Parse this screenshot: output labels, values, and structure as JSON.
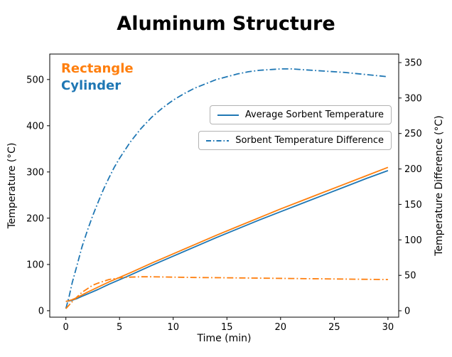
{
  "chart_data": {
    "type": "line",
    "title": "Aluminum Structure",
    "xlabel": "Time (min)",
    "ylabel_left": "Temperature (°C)",
    "ylabel_right": "Temperature Difference (°C)",
    "xlim": [
      -1.5,
      31
    ],
    "xticks": [
      0,
      5,
      10,
      15,
      20,
      25,
      30
    ],
    "ylim_left": [
      -14,
      555
    ],
    "yticks_left": [
      0,
      100,
      200,
      300,
      400,
      500
    ],
    "ylim_right": [
      -9,
      362
    ],
    "yticks_right": [
      0,
      50,
      100,
      150,
      200,
      250,
      300,
      350
    ],
    "grid": false,
    "annotations": [
      {
        "text": "Rectangle",
        "color": "#ff7f0e"
      },
      {
        "text": "Cylinder",
        "color": "#1f77b4"
      }
    ],
    "legend": [
      {
        "label": "Average Sorbent Temperature",
        "style": "solid",
        "color": "#1f77b4"
      },
      {
        "label": "Sorbent Temperature Difference",
        "style": "dashdot",
        "color": "#1f77b4"
      }
    ],
    "colors": {
      "blue": "#1f77b4",
      "orange": "#ff7f0e"
    },
    "series": [
      {
        "name": "cylinder-average-sorbent-temperature",
        "axis": "left",
        "color": "#1f77b4",
        "style": "solid",
        "x": [
          0,
          0.5,
          1,
          1.5,
          2,
          3,
          4,
          5,
          6,
          8,
          10,
          12,
          14,
          16,
          18,
          20,
          22,
          24,
          26,
          28,
          30
        ],
        "y": [
          20,
          22,
          26,
          31,
          36,
          46,
          57,
          67,
          77,
          98,
          118,
          138,
          158,
          177,
          196,
          214,
          232,
          250,
          268,
          286,
          303
        ]
      },
      {
        "name": "rectangle-average-sorbent-temperature",
        "axis": "left",
        "color": "#ff7f0e",
        "style": "solid",
        "x": [
          0,
          0.5,
          1,
          1.5,
          2,
          3,
          4,
          5,
          6,
          8,
          10,
          12,
          14,
          16,
          18,
          20,
          22,
          24,
          26,
          28,
          30
        ],
        "y": [
          20,
          23,
          28,
          34,
          40,
          51,
          62,
          72,
          82,
          103,
          123,
          143,
          163,
          182,
          201,
          220,
          238,
          256,
          274,
          292,
          310
        ]
      },
      {
        "name": "cylinder-sorbent-temperature-difference",
        "axis": "right",
        "color": "#1f77b4",
        "style": "dashdot",
        "x": [
          0,
          0.3,
          0.6,
          1,
          1.5,
          2,
          2.5,
          3,
          3.5,
          4,
          4.5,
          5,
          6,
          7,
          8,
          9,
          10,
          11,
          12,
          13,
          14,
          15,
          16,
          17,
          18,
          19,
          20,
          21,
          22,
          24,
          26,
          28,
          30
        ],
        "y": [
          3,
          20,
          40,
          62,
          90,
          113,
          134,
          153,
          171,
          187,
          202,
          215,
          238,
          257,
          273,
          286,
          297,
          306,
          314,
          320,
          326,
          330,
          334,
          337,
          339,
          340,
          341,
          341,
          340,
          338,
          336,
          333,
          330
        ]
      },
      {
        "name": "rectangle-sorbent-temperature-difference",
        "axis": "right",
        "color": "#ff7f0e",
        "style": "dashdot",
        "x": [
          0,
          0.3,
          0.6,
          1,
          1.5,
          2,
          2.5,
          3,
          4,
          5,
          6,
          7,
          8,
          10,
          12,
          15,
          18,
          21,
          24,
          27,
          30
        ],
        "y": [
          3,
          8,
          13,
          19,
          26,
          31,
          36,
          39,
          44,
          46.5,
          47.5,
          48,
          48,
          47.5,
          47,
          46.5,
          46,
          45.5,
          45,
          44.5,
          44
        ]
      }
    ]
  }
}
